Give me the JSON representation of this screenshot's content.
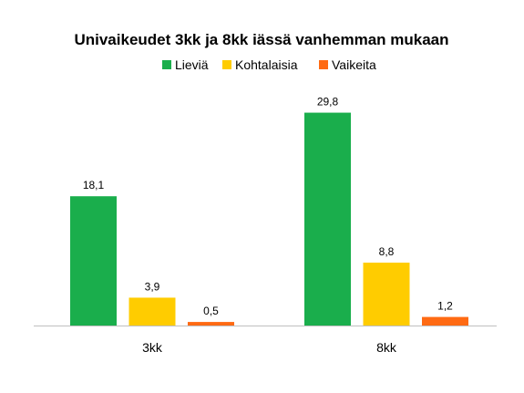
{
  "chart_data": {
    "type": "bar",
    "title": "Univaikeudet 3kk ja 8kk iässä vanhemman mukaan",
    "categories": [
      "3kk",
      "8kk"
    ],
    "series": [
      {
        "name": "Lieviä",
        "color": "#1aae4c",
        "values": [
          18.1,
          29.8
        ],
        "labels": [
          "18,1",
          "29,8"
        ]
      },
      {
        "name": "Kohtalaisia",
        "color": "#ffcc00",
        "values": [
          3.9,
          8.8
        ],
        "labels": [
          "3,9",
          "8,8"
        ]
      },
      {
        "name": "Vaikeita",
        "color": "#ff6a13",
        "values": [
          0.5,
          1.2
        ],
        "labels": [
          "0,5",
          "1,2"
        ]
      }
    ],
    "ylim": [
      0,
      30
    ],
    "grid": false,
    "legend_position": "top"
  }
}
